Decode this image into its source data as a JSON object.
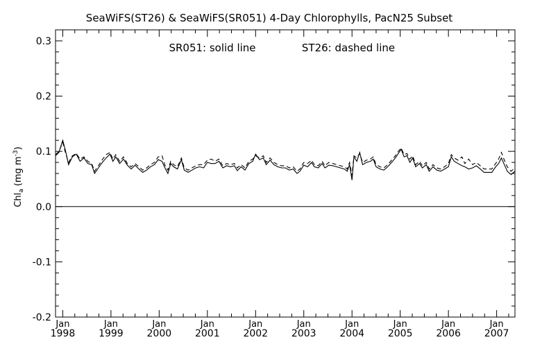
{
  "chart_data": {
    "type": "line",
    "title": "SeaWiFS(ST26) & SeaWiFS(SR051) 4-Day Chlorophylls, PacN25 Subset",
    "annotation": {
      "solid": "SR051: solid line",
      "dashed": "ST26: dashed line"
    },
    "ylabel": {
      "main": "Chl",
      "sub": "a",
      "units": "(mg m",
      "sup": "-3",
      "close": ")"
    },
    "ylim": [
      -0.2,
      0.32
    ],
    "yticks": [
      {
        "value": 0.3,
        "label": "0.3"
      },
      {
        "value": 0.2,
        "label": "0.2"
      },
      {
        "value": 0.1,
        "label": "0.1"
      },
      {
        "value": 0.0,
        "label": "0.0"
      },
      {
        "value": -0.1,
        "label": "-0.1"
      },
      {
        "value": -0.2,
        "label": "-0.2"
      }
    ],
    "xlim": [
      1997.85,
      2007.38
    ],
    "xticks": [
      {
        "value": 1998.0,
        "month": "Jan",
        "year": "1998"
      },
      {
        "value": 1999.0,
        "month": "Jan",
        "year": "1999"
      },
      {
        "value": 2000.0,
        "month": "Jan",
        "year": "2000"
      },
      {
        "value": 2001.0,
        "month": "Jan",
        "year": "2001"
      },
      {
        "value": 2002.0,
        "month": "Jan",
        "year": "2002"
      },
      {
        "value": 2003.0,
        "month": "Jan",
        "year": "2003"
      },
      {
        "value": 2004.0,
        "month": "Jan",
        "year": "2004"
      },
      {
        "value": 2005.0,
        "month": "Jan",
        "year": "2005"
      },
      {
        "value": 2006.0,
        "month": "Jan",
        "year": "2006"
      },
      {
        "value": 2007.0,
        "month": "Jan",
        "year": "2007"
      }
    ],
    "zero_line": 0.0,
    "series": [
      {
        "name": "SR051",
        "style": "solid",
        "color": "#000000",
        "points": [
          [
            1997.85,
            0.092
          ],
          [
            1997.92,
            0.098
          ],
          [
            1998.0,
            0.12
          ],
          [
            1998.06,
            0.1
          ],
          [
            1998.12,
            0.076
          ],
          [
            1998.2,
            0.09
          ],
          [
            1998.28,
            0.095
          ],
          [
            1998.36,
            0.082
          ],
          [
            1998.44,
            0.088
          ],
          [
            1998.52,
            0.078
          ],
          [
            1998.6,
            0.076
          ],
          [
            1998.66,
            0.06
          ],
          [
            1998.74,
            0.07
          ],
          [
            1998.82,
            0.08
          ],
          [
            1998.9,
            0.088
          ],
          [
            1998.98,
            0.095
          ],
          [
            1999.04,
            0.082
          ],
          [
            1999.1,
            0.09
          ],
          [
            1999.18,
            0.078
          ],
          [
            1999.26,
            0.086
          ],
          [
            1999.34,
            0.075
          ],
          [
            1999.42,
            0.068
          ],
          [
            1999.5,
            0.075
          ],
          [
            1999.58,
            0.068
          ],
          [
            1999.66,
            0.062
          ],
          [
            1999.74,
            0.066
          ],
          [
            1999.82,
            0.072
          ],
          [
            1999.9,
            0.076
          ],
          [
            1999.98,
            0.085
          ],
          [
            2000.06,
            0.082
          ],
          [
            2000.12,
            0.07
          ],
          [
            2000.18,
            0.06
          ],
          [
            2000.24,
            0.078
          ],
          [
            2000.3,
            0.072
          ],
          [
            2000.38,
            0.068
          ],
          [
            2000.46,
            0.085
          ],
          [
            2000.52,
            0.066
          ],
          [
            2000.6,
            0.062
          ],
          [
            2000.68,
            0.066
          ],
          [
            2000.76,
            0.07
          ],
          [
            2000.84,
            0.072
          ],
          [
            2000.92,
            0.07
          ],
          [
            2001.0,
            0.08
          ],
          [
            2001.08,
            0.078
          ],
          [
            2001.16,
            0.078
          ],
          [
            2001.24,
            0.082
          ],
          [
            2001.32,
            0.07
          ],
          [
            2001.4,
            0.074
          ],
          [
            2001.48,
            0.072
          ],
          [
            2001.56,
            0.074
          ],
          [
            2001.62,
            0.065
          ],
          [
            2001.7,
            0.072
          ],
          [
            2001.78,
            0.066
          ],
          [
            2001.86,
            0.078
          ],
          [
            2001.94,
            0.082
          ],
          [
            2002.0,
            0.095
          ],
          [
            2002.08,
            0.085
          ],
          [
            2002.16,
            0.088
          ],
          [
            2002.22,
            0.076
          ],
          [
            2002.3,
            0.084
          ],
          [
            2002.38,
            0.076
          ],
          [
            2002.46,
            0.072
          ],
          [
            2002.54,
            0.07
          ],
          [
            2002.62,
            0.07
          ],
          [
            2002.7,
            0.066
          ],
          [
            2002.78,
            0.068
          ],
          [
            2002.86,
            0.06
          ],
          [
            2002.92,
            0.064
          ],
          [
            2003.0,
            0.075
          ],
          [
            2003.08,
            0.072
          ],
          [
            2003.16,
            0.08
          ],
          [
            2003.22,
            0.072
          ],
          [
            2003.3,
            0.07
          ],
          [
            2003.38,
            0.078
          ],
          [
            2003.44,
            0.07
          ],
          [
            2003.52,
            0.075
          ],
          [
            2003.6,
            0.074
          ],
          [
            2003.68,
            0.072
          ],
          [
            2003.76,
            0.07
          ],
          [
            2003.84,
            0.068
          ],
          [
            2003.9,
            0.064
          ],
          [
            2003.95,
            0.076
          ],
          [
            2004.0,
            0.048
          ],
          [
            2004.04,
            0.09
          ],
          [
            2004.1,
            0.082
          ],
          [
            2004.16,
            0.098
          ],
          [
            2004.22,
            0.076
          ],
          [
            2004.3,
            0.08
          ],
          [
            2004.38,
            0.082
          ],
          [
            2004.44,
            0.086
          ],
          [
            2004.5,
            0.072
          ],
          [
            2004.58,
            0.068
          ],
          [
            2004.66,
            0.066
          ],
          [
            2004.74,
            0.072
          ],
          [
            2004.82,
            0.08
          ],
          [
            2004.9,
            0.088
          ],
          [
            2004.96,
            0.096
          ],
          [
            2005.02,
            0.104
          ],
          [
            2005.08,
            0.09
          ],
          [
            2005.14,
            0.092
          ],
          [
            2005.2,
            0.08
          ],
          [
            2005.26,
            0.088
          ],
          [
            2005.32,
            0.072
          ],
          [
            2005.4,
            0.078
          ],
          [
            2005.46,
            0.07
          ],
          [
            2005.54,
            0.076
          ],
          [
            2005.6,
            0.064
          ],
          [
            2005.68,
            0.072
          ],
          [
            2005.76,
            0.066
          ],
          [
            2005.84,
            0.064
          ],
          [
            2005.92,
            0.068
          ],
          [
            2006.0,
            0.072
          ],
          [
            2006.06,
            0.09
          ],
          [
            2006.12,
            0.082
          ],
          [
            2006.2,
            0.078
          ],
          [
            2006.28,
            0.074
          ],
          [
            2006.34,
            0.072
          ],
          [
            2006.42,
            0.068
          ],
          [
            2006.5,
            0.07
          ],
          [
            2006.58,
            0.074
          ],
          [
            2006.66,
            0.068
          ],
          [
            2006.74,
            0.062
          ],
          [
            2006.82,
            0.062
          ],
          [
            2006.9,
            0.062
          ],
          [
            2006.98,
            0.072
          ],
          [
            2007.04,
            0.078
          ],
          [
            2007.1,
            0.088
          ],
          [
            2007.16,
            0.076
          ],
          [
            2007.22,
            0.064
          ],
          [
            2007.3,
            0.058
          ],
          [
            2007.38,
            0.064
          ]
        ]
      },
      {
        "name": "ST26",
        "style": "dashed",
        "color": "#000000",
        "points": [
          [
            1997.85,
            0.094
          ],
          [
            1997.92,
            0.1
          ],
          [
            1998.0,
            0.116
          ],
          [
            1998.06,
            0.096
          ],
          [
            1998.12,
            0.08
          ],
          [
            1998.2,
            0.092
          ],
          [
            1998.28,
            0.096
          ],
          [
            1998.36,
            0.086
          ],
          [
            1998.44,
            0.09
          ],
          [
            1998.52,
            0.082
          ],
          [
            1998.6,
            0.078
          ],
          [
            1998.66,
            0.064
          ],
          [
            1998.74,
            0.074
          ],
          [
            1998.82,
            0.085
          ],
          [
            1998.9,
            0.094
          ],
          [
            1998.98,
            0.098
          ],
          [
            1999.04,
            0.086
          ],
          [
            1999.1,
            0.094
          ],
          [
            1999.18,
            0.082
          ],
          [
            1999.26,
            0.09
          ],
          [
            1999.34,
            0.078
          ],
          [
            1999.42,
            0.072
          ],
          [
            1999.5,
            0.078
          ],
          [
            1999.58,
            0.072
          ],
          [
            1999.66,
            0.066
          ],
          [
            1999.74,
            0.07
          ],
          [
            1999.82,
            0.076
          ],
          [
            1999.9,
            0.08
          ],
          [
            1999.98,
            0.09
          ],
          [
            2000.06,
            0.092
          ],
          [
            2000.12,
            0.075
          ],
          [
            2000.18,
            0.066
          ],
          [
            2000.24,
            0.082
          ],
          [
            2000.3,
            0.076
          ],
          [
            2000.38,
            0.072
          ],
          [
            2000.46,
            0.088
          ],
          [
            2000.52,
            0.07
          ],
          [
            2000.6,
            0.066
          ],
          [
            2000.68,
            0.07
          ],
          [
            2000.76,
            0.074
          ],
          [
            2000.84,
            0.076
          ],
          [
            2000.92,
            0.076
          ],
          [
            2001.0,
            0.084
          ],
          [
            2001.08,
            0.086
          ],
          [
            2001.16,
            0.082
          ],
          [
            2001.24,
            0.086
          ],
          [
            2001.32,
            0.074
          ],
          [
            2001.4,
            0.078
          ],
          [
            2001.48,
            0.076
          ],
          [
            2001.56,
            0.078
          ],
          [
            2001.62,
            0.07
          ],
          [
            2001.7,
            0.076
          ],
          [
            2001.78,
            0.07
          ],
          [
            2001.86,
            0.082
          ],
          [
            2001.94,
            0.086
          ],
          [
            2002.0,
            0.092
          ],
          [
            2002.08,
            0.088
          ],
          [
            2002.16,
            0.092
          ],
          [
            2002.22,
            0.08
          ],
          [
            2002.3,
            0.088
          ],
          [
            2002.38,
            0.08
          ],
          [
            2002.46,
            0.076
          ],
          [
            2002.54,
            0.074
          ],
          [
            2002.62,
            0.074
          ],
          [
            2002.7,
            0.07
          ],
          [
            2002.78,
            0.072
          ],
          [
            2002.86,
            0.064
          ],
          [
            2002.92,
            0.068
          ],
          [
            2003.0,
            0.08
          ],
          [
            2003.08,
            0.078
          ],
          [
            2003.16,
            0.084
          ],
          [
            2003.22,
            0.076
          ],
          [
            2003.3,
            0.074
          ],
          [
            2003.38,
            0.082
          ],
          [
            2003.44,
            0.074
          ],
          [
            2003.52,
            0.08
          ],
          [
            2003.6,
            0.078
          ],
          [
            2003.68,
            0.076
          ],
          [
            2003.76,
            0.074
          ],
          [
            2003.84,
            0.072
          ],
          [
            2003.9,
            0.068
          ],
          [
            2003.95,
            0.08
          ],
          [
            2004.0,
            0.056
          ],
          [
            2004.04,
            0.092
          ],
          [
            2004.1,
            0.088
          ],
          [
            2004.16,
            0.096
          ],
          [
            2004.22,
            0.08
          ],
          [
            2004.3,
            0.084
          ],
          [
            2004.38,
            0.086
          ],
          [
            2004.44,
            0.09
          ],
          [
            2004.5,
            0.076
          ],
          [
            2004.58,
            0.072
          ],
          [
            2004.66,
            0.07
          ],
          [
            2004.74,
            0.076
          ],
          [
            2004.82,
            0.084
          ],
          [
            2004.9,
            0.092
          ],
          [
            2004.96,
            0.1
          ],
          [
            2005.02,
            0.106
          ],
          [
            2005.08,
            0.094
          ],
          [
            2005.14,
            0.096
          ],
          [
            2005.2,
            0.086
          ],
          [
            2005.26,
            0.092
          ],
          [
            2005.32,
            0.076
          ],
          [
            2005.4,
            0.082
          ],
          [
            2005.46,
            0.074
          ],
          [
            2005.54,
            0.08
          ],
          [
            2005.6,
            0.068
          ],
          [
            2005.68,
            0.076
          ],
          [
            2005.76,
            0.07
          ],
          [
            2005.84,
            0.068
          ],
          [
            2005.92,
            0.072
          ],
          [
            2006.0,
            0.078
          ],
          [
            2006.06,
            0.094
          ],
          [
            2006.12,
            0.088
          ],
          [
            2006.2,
            0.084
          ],
          [
            2006.28,
            0.09
          ],
          [
            2006.34,
            0.078
          ],
          [
            2006.42,
            0.086
          ],
          [
            2006.5,
            0.076
          ],
          [
            2006.58,
            0.08
          ],
          [
            2006.66,
            0.074
          ],
          [
            2006.74,
            0.068
          ],
          [
            2006.82,
            0.068
          ],
          [
            2006.9,
            0.068
          ],
          [
            2006.98,
            0.078
          ],
          [
            2007.04,
            0.086
          ],
          [
            2007.1,
            0.098
          ],
          [
            2007.16,
            0.084
          ],
          [
            2007.22,
            0.072
          ],
          [
            2007.3,
            0.064
          ],
          [
            2007.38,
            0.07
          ]
        ]
      }
    ]
  }
}
